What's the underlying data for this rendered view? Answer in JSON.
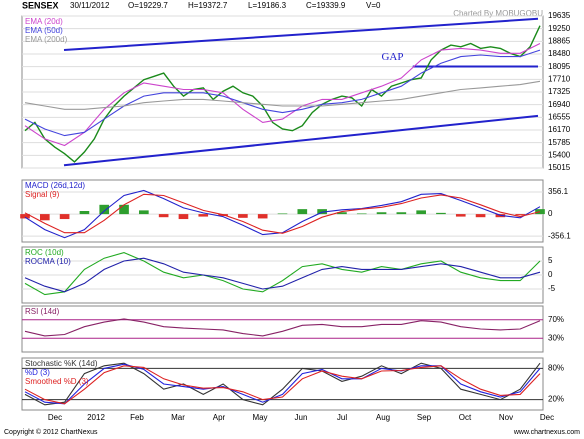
{
  "header": {
    "symbol": "SENSEX",
    "date": "30/11/2012",
    "open": "O=19229.7",
    "high": "H=19372.7",
    "low": "L=19186.3",
    "close": "C=19339.9",
    "volume": "V=0"
  },
  "credit": "Charted By MOBUGOBU",
  "x_labels": [
    "Dec",
    "2012",
    "Feb",
    "Mar",
    "Apr",
    "May",
    "Jun",
    "Jul",
    "Aug",
    "Sep",
    "Oct",
    "Nov",
    "Dec"
  ],
  "footer": {
    "copyright": "Copyright © 2012 ChartNexus",
    "site": "www.chartnexus.com"
  },
  "chart_data": [
    {
      "type": "line",
      "ylim": [
        15015,
        19635
      ],
      "yticks": [
        19635,
        19250,
        18865,
        18480,
        18095,
        17710,
        17325,
        16940,
        16555,
        16170,
        15785,
        15400,
        15015
      ],
      "grid_color": "#dddddd",
      "annotation": "GAP",
      "gap_level": 18100,
      "channel": [
        [
          18600,
          19550
        ],
        [
          15100,
          16600
        ]
      ],
      "channel_color": "#2222cc",
      "series": [
        {
          "name": "Close",
          "legend": false,
          "color": "#1a8a1a",
          "values": [
            16150,
            16400,
            15900,
            15650,
            15450,
            15200,
            15500,
            15900,
            16500,
            16900,
            17200,
            17450,
            17700,
            17800,
            17900,
            17500,
            17200,
            17400,
            17450,
            17100,
            17350,
            17500,
            17300,
            17200,
            16900,
            16400,
            16200,
            16150,
            16300,
            16700,
            16950,
            17100,
            17200,
            17150,
            16900,
            17400,
            17200,
            17500,
            17600,
            17700,
            17750,
            18300,
            18600,
            18750,
            18700,
            18800,
            18650,
            18700,
            18650,
            18500,
            18400,
            18700,
            19340
          ]
        },
        {
          "name": "EMA (20d)",
          "color": "#cc44cc",
          "values": [
            16300,
            15900,
            15700,
            16100,
            16800,
            17300,
            17600,
            17500,
            17400,
            17400,
            17300,
            16800,
            16400,
            16500,
            16900,
            17100,
            17100,
            17300,
            17500,
            17750,
            18300,
            18600,
            18650,
            18600,
            18500,
            18500,
            18800
          ]
        },
        {
          "name": "EMA (50d)",
          "color": "#4444dd",
          "values": [
            16500,
            16200,
            16000,
            16100,
            16500,
            16900,
            17200,
            17300,
            17300,
            17300,
            17200,
            17000,
            16800,
            16700,
            16800,
            16950,
            17000,
            17100,
            17300,
            17500,
            17900,
            18200,
            18400,
            18450,
            18400,
            18400,
            18600
          ]
        },
        {
          "name": "EMA (200d)",
          "color": "#999999",
          "values": [
            17000,
            16900,
            16800,
            16800,
            16850,
            16900,
            17000,
            17050,
            17100,
            17100,
            17050,
            17000,
            16950,
            16900,
            16900,
            16900,
            16950,
            17000,
            17050,
            17100,
            17200,
            17300,
            17400,
            17450,
            17500,
            17550,
            17650
          ]
        }
      ]
    },
    {
      "type": "line",
      "ylim": [
        -450,
        550
      ],
      "yticks": [
        356.1,
        0,
        -356.1
      ],
      "grid_color": "#dddddd",
      "histogram_colors": [
        "#2e9e2e",
        "#e0302a"
      ],
      "histogram": [
        -70,
        -100,
        -80,
        50,
        150,
        150,
        60,
        -50,
        -80,
        -40,
        -30,
        -60,
        -70,
        10,
        80,
        80,
        30,
        10,
        30,
        30,
        60,
        20,
        -40,
        -50,
        -50,
        -20,
        80
      ],
      "series": [
        {
          "name": "MACD (26d,12d)",
          "color": "#2222cc",
          "values": [
            -50,
            -250,
            -380,
            -250,
            50,
            300,
            380,
            250,
            100,
            20,
            -40,
            -180,
            -330,
            -300,
            -120,
            30,
            70,
            90,
            140,
            200,
            320,
            330,
            220,
            100,
            -20,
            -60,
            120
          ]
        },
        {
          "name": "Signal (9)",
          "color": "#dd2222",
          "values": [
            20,
            -150,
            -300,
            -300,
            -100,
            150,
            320,
            300,
            180,
            60,
            -10,
            -120,
            -260,
            -310,
            -200,
            -50,
            40,
            80,
            110,
            170,
            260,
            310,
            260,
            150,
            30,
            -40,
            40
          ]
        }
      ]
    },
    {
      "type": "line",
      "ylim": [
        -10,
        10
      ],
      "yticks": [
        5,
        0,
        -5
      ],
      "grid_color": "#dddddd",
      "series": [
        {
          "name": "ROC (10d)",
          "color": "#22aa22",
          "values": [
            -3,
            -7,
            -6,
            2,
            6,
            8,
            5,
            1,
            -1,
            0,
            -2,
            -5,
            -6,
            -2,
            3,
            4,
            2,
            1,
            3,
            2,
            4,
            5,
            1,
            -1,
            -2,
            -2,
            5
          ]
        },
        {
          "name": "ROCMA (10)",
          "color": "#2222aa",
          "values": [
            -1,
            -4,
            -6,
            -3,
            2,
            5,
            6,
            4,
            1,
            0,
            -1,
            -3,
            -5,
            -4,
            -1,
            2,
            3,
            2,
            2,
            2,
            3,
            4,
            3,
            1,
            -1,
            -1,
            1
          ]
        }
      ]
    },
    {
      "type": "line",
      "ylim": [
        0,
        100
      ],
      "yticks": [
        {
          "value": 70,
          "label": "70%"
        },
        {
          "value": 30,
          "label": "30%"
        }
      ],
      "grid_color": "#aa2288",
      "series": [
        {
          "name": "RSI (14d)",
          "color": "#882266",
          "values": [
            45,
            35,
            38,
            55,
            65,
            72,
            65,
            55,
            52,
            50,
            48,
            40,
            35,
            45,
            58,
            60,
            55,
            55,
            60,
            60,
            68,
            65,
            55,
            50,
            48,
            50,
            68
          ]
        }
      ]
    },
    {
      "type": "line",
      "ylim": [
        0,
        100
      ],
      "yticks": [
        {
          "value": 80,
          "label": "80%"
        },
        {
          "value": 20,
          "label": "20%"
        }
      ],
      "grid_color": "#333333",
      "series": [
        {
          "name": "Stochastic %K (14d)",
          "color": "#333333",
          "values": [
            30,
            10,
            15,
            70,
            85,
            90,
            70,
            40,
            50,
            30,
            50,
            20,
            10,
            40,
            80,
            75,
            55,
            65,
            85,
            70,
            90,
            80,
            40,
            30,
            20,
            40,
            90
          ]
        },
        {
          "name": "%D (3)",
          "color": "#2222dd",
          "values": [
            35,
            15,
            12,
            50,
            80,
            88,
            78,
            50,
            45,
            40,
            45,
            30,
            15,
            30,
            70,
            78,
            60,
            60,
            80,
            75,
            85,
            85,
            50,
            35,
            25,
            35,
            80
          ]
        },
        {
          "name": "Smoothed %D (3)",
          "color": "#dd2222",
          "values": [
            40,
            20,
            12,
            40,
            72,
            85,
            82,
            60,
            48,
            42,
            43,
            35,
            20,
            25,
            60,
            75,
            65,
            60,
            75,
            76,
            82,
            85,
            60,
            40,
            28,
            30,
            70
          ]
        }
      ]
    }
  ]
}
